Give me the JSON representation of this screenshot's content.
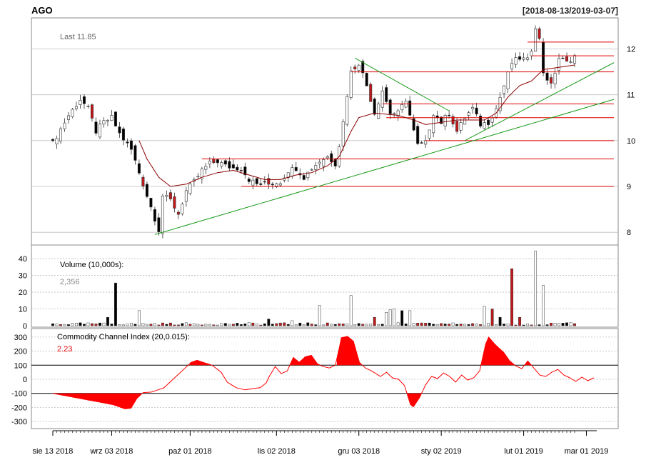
{
  "header": {
    "symbol": "AGO",
    "range": "[2018-08-13/2019-03-07]"
  },
  "price_panel": {
    "last_label": "Last 11.85",
    "y_ticks": [
      "8",
      "9",
      "10",
      "11",
      "12"
    ]
  },
  "volume_panel": {
    "label": "Volume (10,000s):",
    "value": "2,356",
    "y_ticks": [
      "0",
      "10",
      "20",
      "30",
      "40"
    ]
  },
  "cci_panel": {
    "label": "Commodity Channel Index (20,0.015):",
    "value": "2.23",
    "y_ticks": [
      "-300",
      "-200",
      "-100",
      "0",
      "100",
      "200",
      "300"
    ]
  },
  "x_axis": {
    "labels": [
      "sie 13 2018",
      "wrz 03 2018",
      "paź 01 2018",
      "lis 02 2018",
      "gru 03 2018",
      "sty 02 2019",
      "lut 01 2019",
      "mar 01 2019"
    ]
  },
  "colors": {
    "up": "#ffffff",
    "down": "#000000",
    "gap_down": "#c0191b",
    "ma_line": "#8b0000",
    "support_red": "#e00000",
    "trend_green": "#1a9a1a",
    "cci_fill": "#ff0000",
    "grid": "#bfbfbf"
  },
  "chart_data": [
    {
      "type": "candlestick",
      "title": "AGO",
      "subtitle": "[2018-08-13/2019-03-07]",
      "ylim": [
        7.8,
        12.6
      ],
      "x_dates": [
        "2018-08-13",
        "2018-09-03",
        "2018-10-01",
        "2018-11-02",
        "2018-12-03",
        "2019-01-02",
        "2019-02-01",
        "2019-03-01"
      ],
      "last": 11.85,
      "close_path": [
        [
          0,
          9.95
        ],
        [
          4,
          10.55
        ],
        [
          7,
          10.9
        ],
        [
          9,
          10.7
        ],
        [
          11,
          10.2
        ],
        [
          13,
          10.4
        ],
        [
          15,
          10.5
        ],
        [
          17,
          10.15
        ],
        [
          20,
          9.8
        ],
        [
          22,
          9.3
        ],
        [
          24,
          8.8
        ],
        [
          26,
          8.3
        ],
        [
          27,
          8.05
        ],
        [
          28,
          8.8
        ],
        [
          30,
          8.7
        ],
        [
          32,
          8.4
        ],
        [
          34,
          8.9
        ],
        [
          36,
          9.1
        ],
        [
          38,
          9.35
        ],
        [
          40,
          9.5
        ],
        [
          42,
          9.55
        ],
        [
          44,
          9.45
        ],
        [
          46,
          9.4
        ],
        [
          48,
          9.4
        ],
        [
          50,
          9.15
        ],
        [
          52,
          9.05
        ],
        [
          55,
          9.05
        ],
        [
          58,
          9.1
        ],
        [
          60,
          9.35
        ],
        [
          62,
          9.4
        ],
        [
          64,
          9.2
        ],
        [
          66,
          9.4
        ],
        [
          68,
          9.55
        ],
        [
          70,
          9.65
        ],
        [
          72,
          9.5
        ],
        [
          73,
          9.9
        ],
        [
          74,
          10.4
        ],
        [
          75,
          11.0
        ],
        [
          76,
          11.5
        ],
        [
          78,
          11.7
        ],
        [
          80,
          11.2
        ],
        [
          82,
          10.6
        ],
        [
          84,
          11.1
        ],
        [
          86,
          10.6
        ],
        [
          88,
          10.6
        ],
        [
          90,
          10.9
        ],
        [
          92,
          10.2
        ],
        [
          93,
          9.9
        ],
        [
          95,
          9.95
        ],
        [
          97,
          10.6
        ],
        [
          99,
          10.4
        ],
        [
          101,
          10.6
        ],
        [
          103,
          10.2
        ],
        [
          105,
          10.5
        ],
        [
          107,
          10.7
        ],
        [
          109,
          10.35
        ],
        [
          111,
          10.4
        ],
        [
          113,
          10.7
        ],
        [
          115,
          11.2
        ],
        [
          117,
          11.7
        ],
        [
          119,
          11.8
        ],
        [
          121,
          11.75
        ],
        [
          122,
          12.0
        ],
        [
          123,
          12.5
        ],
        [
          124,
          12.2
        ],
        [
          125,
          11.5
        ],
        [
          127,
          11.2
        ],
        [
          129,
          11.8
        ],
        [
          131,
          11.7
        ],
        [
          133,
          11.85
        ]
      ],
      "ma_path": [
        [
          22,
          10.0
        ],
        [
          24,
          9.6
        ],
        [
          27,
          9.2
        ],
        [
          30,
          9.0
        ],
        [
          34,
          9.05
        ],
        [
          38,
          9.2
        ],
        [
          42,
          9.3
        ],
        [
          46,
          9.35
        ],
        [
          50,
          9.25
        ],
        [
          54,
          9.15
        ],
        [
          58,
          9.15
        ],
        [
          62,
          9.25
        ],
        [
          66,
          9.3
        ],
        [
          70,
          9.45
        ],
        [
          73,
          9.65
        ],
        [
          76,
          10.2
        ],
        [
          78,
          10.5
        ],
        [
          82,
          10.6
        ],
        [
          88,
          10.55
        ],
        [
          92,
          10.45
        ],
        [
          95,
          10.35
        ],
        [
          99,
          10.4
        ],
        [
          103,
          10.45
        ],
        [
          107,
          10.45
        ],
        [
          110,
          10.45
        ],
        [
          113,
          10.6
        ],
        [
          116,
          10.95
        ],
        [
          119,
          11.2
        ],
        [
          122,
          11.3
        ],
        [
          125,
          11.55
        ],
        [
          129,
          11.6
        ],
        [
          133,
          11.65
        ]
      ],
      "support_lines": [
        {
          "from": 38,
          "level": 9.6
        },
        {
          "from": 48,
          "level": 9.0
        },
        {
          "from": 76,
          "level": 11.5
        },
        {
          "from": 84,
          "level": 10.8
        },
        {
          "from": 85,
          "level": 10.5
        },
        {
          "from": 95,
          "level": 10.0
        },
        {
          "from": 121,
          "level": 12.15
        },
        {
          "from": 122,
          "level": 11.85
        }
      ],
      "trend_lines": [
        {
          "from": [
            26,
            7.95
          ],
          "to": [
            143,
            10.9
          ]
        },
        {
          "from": [
            77,
            11.8
          ],
          "to": [
            101,
            10.65
          ]
        },
        {
          "from": [
            105,
            10.0
          ],
          "to": [
            143,
            11.7
          ]
        }
      ]
    },
    {
      "type": "bar",
      "ylabel": "Volume (10,000s):",
      "ylim": [
        0,
        46
      ],
      "current": 2.356,
      "spikes": [
        {
          "i": 14,
          "v": 5
        },
        {
          "i": 16,
          "v": 25.5
        },
        {
          "i": 22,
          "v": 9
        },
        {
          "i": 55,
          "v": 4
        },
        {
          "i": 61,
          "v": 3
        },
        {
          "i": 68,
          "v": 12
        },
        {
          "i": 76,
          "v": 18
        },
        {
          "i": 82,
          "v": 5
        },
        {
          "i": 85,
          "v": 8
        },
        {
          "i": 86,
          "v": 9.5
        },
        {
          "i": 87,
          "v": 10
        },
        {
          "i": 89,
          "v": 9
        },
        {
          "i": 91,
          "v": 9
        },
        {
          "i": 110,
          "v": 11.5
        },
        {
          "i": 112,
          "v": 10
        },
        {
          "i": 114,
          "v": 5
        },
        {
          "i": 117,
          "v": 34
        },
        {
          "i": 119,
          "v": 5
        },
        {
          "i": 123,
          "v": 44.5
        },
        {
          "i": 125,
          "v": 24
        }
      ]
    },
    {
      "type": "area",
      "ylabel": "Commodity Channel Index (20,0.015):",
      "ylim": [
        -340,
        350
      ],
      "current": 2.23,
      "thresholds": [
        100,
        -100
      ],
      "path": [
        [
          0,
          -100
        ],
        [
          20,
          -180
        ],
        [
          24,
          -210
        ],
        [
          26,
          -205
        ],
        [
          28,
          -135
        ],
        [
          30,
          -95
        ],
        [
          33,
          -90
        ],
        [
          37,
          -60
        ],
        [
          40,
          0
        ],
        [
          43,
          60
        ],
        [
          46,
          120
        ],
        [
          48,
          135
        ],
        [
          50,
          120
        ],
        [
          53,
          100
        ],
        [
          56,
          50
        ],
        [
          58,
          -20
        ],
        [
          61,
          -60
        ],
        [
          64,
          -75
        ],
        [
          67,
          -65
        ],
        [
          69,
          -60
        ],
        [
          71,
          -25
        ],
        [
          72,
          20
        ],
        [
          74,
          90
        ],
        [
          76,
          40
        ],
        [
          78,
          60
        ],
        [
          80,
          155
        ],
        [
          82,
          120
        ],
        [
          84,
          160
        ],
        [
          86,
          170
        ],
        [
          88,
          110
        ],
        [
          90,
          90
        ],
        [
          92,
          80
        ],
        [
          94,
          100
        ],
        [
          95,
          195
        ],
        [
          96,
          295
        ],
        [
          98,
          305
        ],
        [
          100,
          270
        ],
        [
          102,
          120
        ],
        [
          104,
          80
        ],
        [
          106,
          60
        ],
        [
          109,
          20
        ],
        [
          111,
          50
        ],
        [
          113,
          10
        ],
        [
          115,
          0
        ],
        [
          117,
          -45
        ],
        [
          119,
          -180
        ],
        [
          120,
          -195
        ],
        [
          122,
          -130
        ],
        [
          124,
          -40
        ],
        [
          126,
          20
        ],
        [
          128,
          5
        ],
        [
          130,
          45
        ],
        [
          132,
          20
        ],
        [
          134,
          -20
        ],
        [
          136,
          30
        ],
        [
          138,
          -5
        ],
        [
          140,
          10
        ],
        [
          142,
          60
        ],
        [
          144,
          250
        ],
        [
          145,
          300
        ],
        [
          147,
          250
        ],
        [
          150,
          190
        ],
        [
          152,
          130
        ],
        [
          154,
          95
        ],
        [
          156,
          75
        ],
        [
          158,
          130
        ],
        [
          160,
          80
        ],
        [
          162,
          30
        ],
        [
          164,
          20
        ],
        [
          166,
          50
        ],
        [
          168,
          70
        ],
        [
          170,
          30
        ],
        [
          172,
          10
        ],
        [
          174,
          -15
        ],
        [
          176,
          15
        ],
        [
          178,
          -10
        ],
        [
          180,
          10
        ]
      ]
    }
  ]
}
